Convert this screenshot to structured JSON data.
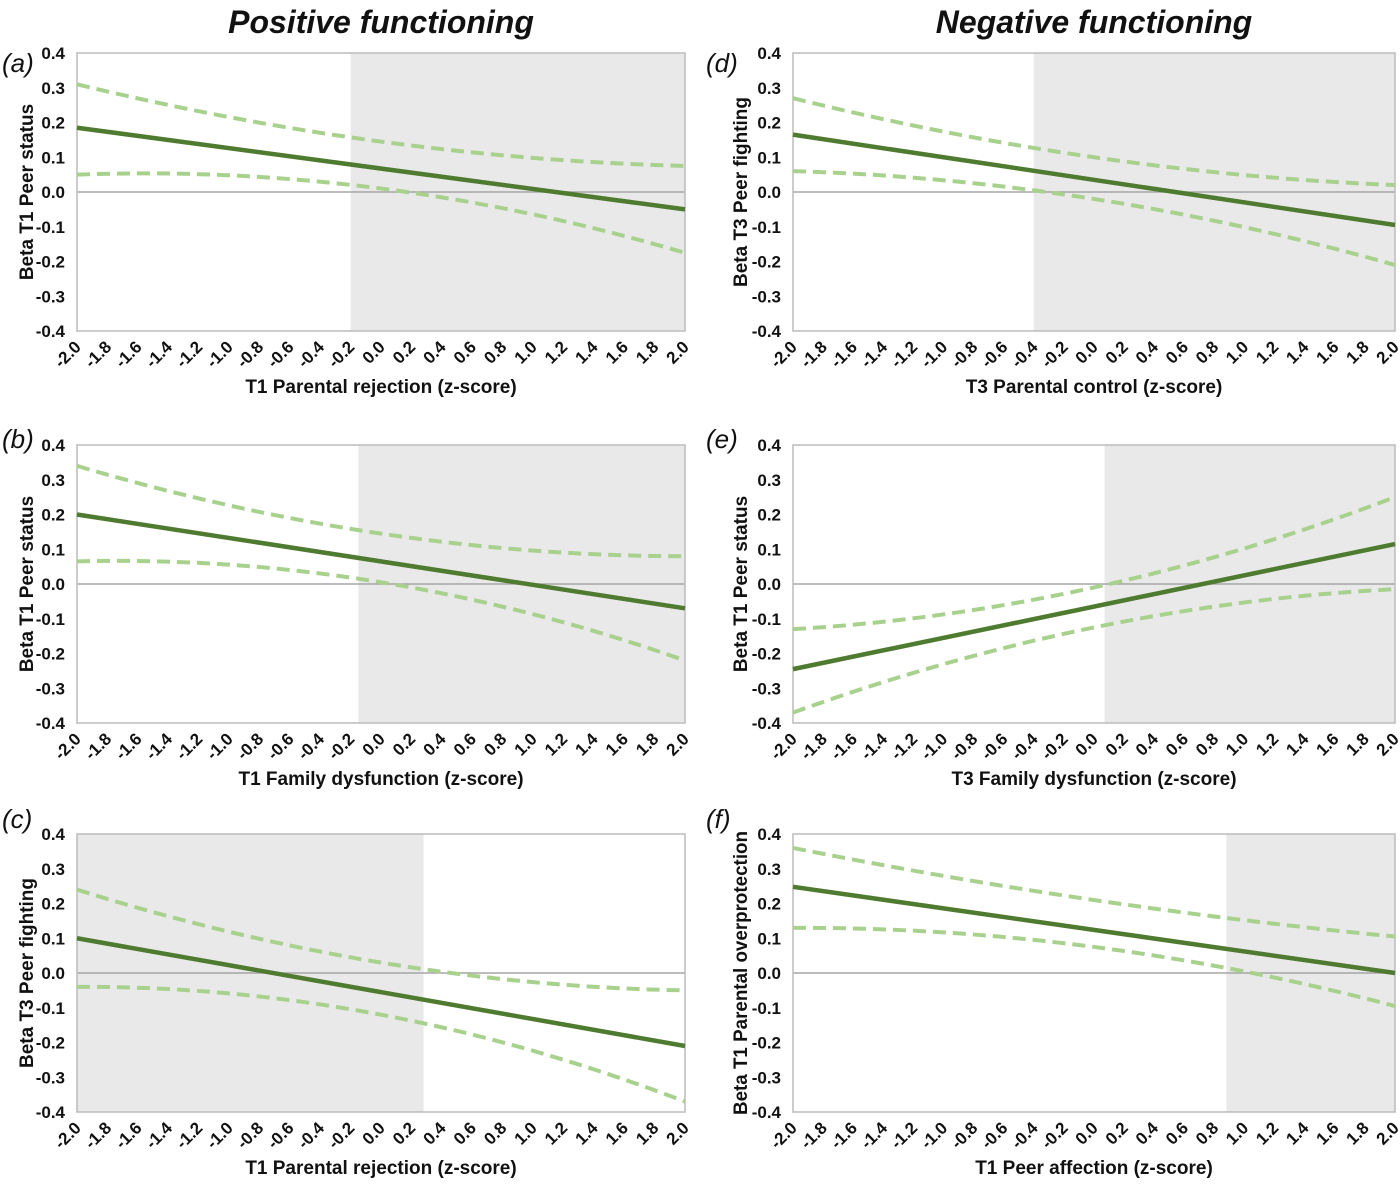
{
  "figure_titles": {
    "left_column": "Positive functioning",
    "right_column": "Negative functioning"
  },
  "colors": {
    "solid_line": "#4e7b30",
    "dashed_line": "#a9d18e",
    "shaded_region": "#e9e9e9",
    "zero_line": "#a6a6a6",
    "plot_border": "#bfbfbf",
    "text": "#111111"
  },
  "axes": {
    "x_tick_labels": [
      "-2.0",
      "-1.8",
      "-1.6",
      "-1.4",
      "-1.2",
      "-1.0",
      "-0.8",
      "-0.6",
      "-0.4",
      "-0.2",
      "0.0",
      "0.2",
      "0.4",
      "0.6",
      "0.8",
      "1.0",
      "1.2",
      "1.4",
      "1.6",
      "1.8",
      "2.0"
    ],
    "y_tick_labels": [
      "0.4",
      "0.3",
      "0.2",
      "0.1",
      "0.0",
      "-0.1",
      "-0.2",
      "-0.3",
      "-0.4"
    ]
  },
  "chart_data": [
    {
      "type": "line",
      "panel": "(a)",
      "id": "a",
      "col": 0,
      "row": 0,
      "group": "Positive functioning",
      "xlabel": "T1 Parental rejection (z-score)",
      "ylabel": "Beta T1 Peer status",
      "xlim": [
        -2,
        2
      ],
      "ylim": [
        -0.4,
        0.4
      ],
      "x_tick_step": 0.2,
      "y_tick_step": 0.1,
      "grid": "zero-line-only",
      "legend": "none",
      "shaded_region": [
        -0.2,
        2.0
      ],
      "series": [
        {
          "name": "beta estimate",
          "style": "solid",
          "x": [
            -2,
            2
          ],
          "y": [
            0.185,
            -0.05
          ]
        },
        {
          "name": "upper 95% CI",
          "style": "dashed",
          "x": [
            -2,
            0,
            2
          ],
          "y": [
            0.31,
            0.145,
            0.075
          ]
        },
        {
          "name": "lower 95% CI",
          "style": "dashed",
          "x": [
            -2,
            0,
            2
          ],
          "y": [
            0.05,
            0.01,
            -0.175
          ]
        }
      ]
    },
    {
      "type": "line",
      "panel": "(b)",
      "id": "b",
      "col": 0,
      "row": 1,
      "group": "Positive functioning",
      "xlabel": "T1 Family dysfunction (z-score)",
      "ylabel": "Beta T1 Peer status",
      "xlim": [
        -2,
        2
      ],
      "ylim": [
        -0.4,
        0.4
      ],
      "x_tick_step": 0.2,
      "y_tick_step": 0.1,
      "grid": "zero-line-only",
      "legend": "none",
      "shaded_region": [
        -0.15,
        2.0
      ],
      "series": [
        {
          "name": "beta estimate",
          "style": "solid",
          "x": [
            -2,
            2
          ],
          "y": [
            0.2,
            -0.07
          ]
        },
        {
          "name": "upper 95% CI",
          "style": "dashed",
          "x": [
            -2,
            0,
            2
          ],
          "y": [
            0.34,
            0.145,
            0.08
          ]
        },
        {
          "name": "lower 95% CI",
          "style": "dashed",
          "x": [
            -2,
            0,
            2
          ],
          "y": [
            0.065,
            0.005,
            -0.22
          ]
        }
      ]
    },
    {
      "type": "line",
      "panel": "(c)",
      "id": "c",
      "col": 0,
      "row": 2,
      "group": "Positive functioning",
      "xlabel": "T1 Parental rejection (z-score)",
      "ylabel": "Beta T3 Peer fighting",
      "xlim": [
        -2,
        2
      ],
      "ylim": [
        -0.4,
        0.4
      ],
      "x_tick_step": 0.2,
      "y_tick_step": 0.1,
      "grid": "zero-line-only",
      "legend": "none",
      "shaded_region": [
        -2.0,
        0.28
      ],
      "series": [
        {
          "name": "beta estimate",
          "style": "solid",
          "x": [
            -2,
            2
          ],
          "y": [
            0.1,
            -0.21
          ]
        },
        {
          "name": "upper 95% CI",
          "style": "dashed",
          "x": [
            -2,
            0,
            2
          ],
          "y": [
            0.24,
            0.03,
            -0.05
          ]
        },
        {
          "name": "lower 95% CI",
          "style": "dashed",
          "x": [
            -2,
            0,
            2
          ],
          "y": [
            -0.04,
            -0.12,
            -0.37
          ]
        }
      ]
    },
    {
      "type": "line",
      "panel": "(d)",
      "id": "d",
      "col": 1,
      "row": 0,
      "group": "Negative functioning",
      "xlabel": "T3 Parental control (z-score)",
      "ylabel": "Beta T3 Peer fighting",
      "xlim": [
        -2,
        2
      ],
      "ylim": [
        -0.4,
        0.4
      ],
      "x_tick_step": 0.2,
      "y_tick_step": 0.1,
      "grid": "zero-line-only",
      "legend": "none",
      "shaded_region": [
        -0.4,
        2.0
      ],
      "series": [
        {
          "name": "beta estimate",
          "style": "solid",
          "x": [
            -2,
            2
          ],
          "y": [
            0.165,
            -0.095
          ]
        },
        {
          "name": "upper 95% CI",
          "style": "dashed",
          "x": [
            -2,
            0,
            2
          ],
          "y": [
            0.27,
            0.1,
            0.02
          ]
        },
        {
          "name": "lower 95% CI",
          "style": "dashed",
          "x": [
            -2,
            0,
            2
          ],
          "y": [
            0.06,
            -0.02,
            -0.21
          ]
        }
      ]
    },
    {
      "type": "line",
      "panel": "(e)",
      "id": "e",
      "col": 1,
      "row": 1,
      "group": "Negative functioning",
      "xlabel": "T3 Family dysfunction (z-score)",
      "ylabel": "Beta T1 Peer status",
      "xlim": [
        -2,
        2
      ],
      "ylim": [
        -0.4,
        0.4
      ],
      "x_tick_step": 0.2,
      "y_tick_step": 0.1,
      "grid": "zero-line-only",
      "legend": "none",
      "shaded_region": [
        0.07,
        2.0
      ],
      "series": [
        {
          "name": "beta estimate",
          "style": "solid",
          "x": [
            -2,
            2
          ],
          "y": [
            -0.245,
            0.115
          ]
        },
        {
          "name": "upper 95% CI",
          "style": "dashed",
          "x": [
            -2,
            0,
            2
          ],
          "y": [
            -0.13,
            -0.01,
            0.25
          ]
        },
        {
          "name": "lower 95% CI",
          "style": "dashed",
          "x": [
            -2,
            0,
            2
          ],
          "y": [
            -0.37,
            -0.125,
            -0.015
          ]
        }
      ]
    },
    {
      "type": "line",
      "panel": "(f)",
      "id": "f",
      "col": 1,
      "row": 2,
      "group": "Negative functioning",
      "xlabel": "T1 Peer affection (z-score)",
      "ylabel": "Beta T1 Parental overprotection",
      "xlim": [
        -2,
        2
      ],
      "ylim": [
        -0.4,
        0.4
      ],
      "x_tick_step": 0.2,
      "y_tick_step": 0.1,
      "grid": "zero-line-only",
      "legend": "none",
      "shaded_region": [
        0.88,
        2.0
      ],
      "series": [
        {
          "name": "beta estimate",
          "style": "solid",
          "x": [
            -2,
            2
          ],
          "y": [
            0.248,
            0.0
          ]
        },
        {
          "name": "upper 95% CI",
          "style": "dashed",
          "x": [
            -2,
            0,
            2
          ],
          "y": [
            0.36,
            0.21,
            0.105
          ]
        },
        {
          "name": "lower 95% CI",
          "style": "dashed",
          "x": [
            -2,
            0,
            2
          ],
          "y": [
            0.13,
            0.075,
            -0.095
          ]
        }
      ]
    }
  ]
}
